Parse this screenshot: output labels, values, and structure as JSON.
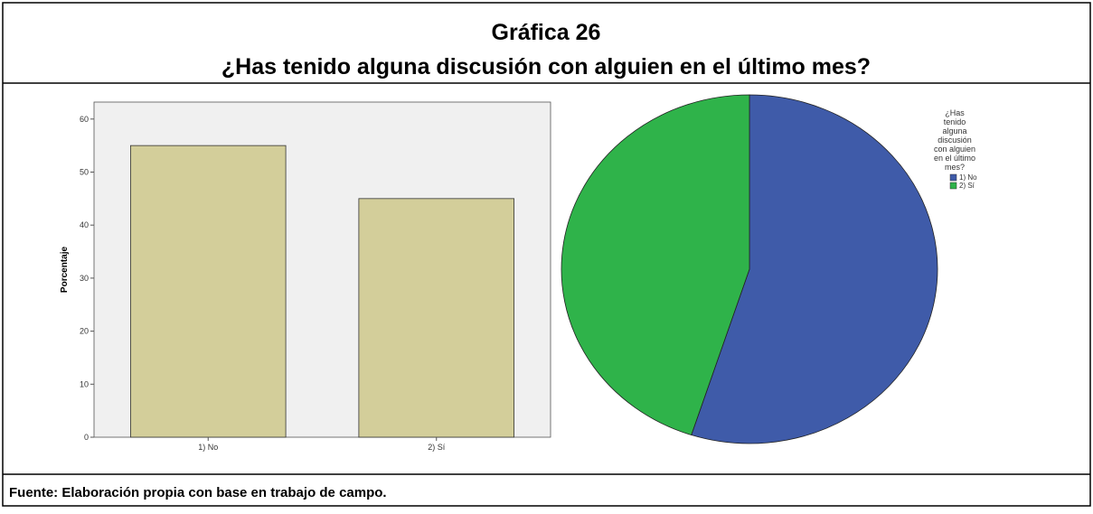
{
  "header": {
    "title": "Gráfica 26",
    "subtitle": "¿Has tenido alguna discusión con alguien en el último mes?"
  },
  "footer": "Fuente: Elaboración propia con base en trabajo de campo.",
  "chart_data": [
    {
      "type": "bar",
      "ylabel": "Porcentaje",
      "categories": [
        "1) No",
        "2) Sí"
      ],
      "values": [
        55,
        45
      ],
      "color": "#d3ce9a",
      "ylim": [
        0,
        63.2
      ],
      "yticks": [
        0,
        10,
        20,
        30,
        40,
        50,
        60
      ]
    },
    {
      "type": "pie",
      "legend_title": "¿Has tenido alguna discusión con alguien en el último mes?",
      "categories": [
        "1) No",
        "2) Sí"
      ],
      "values": [
        55,
        45
      ],
      "colors": [
        "#3f5ba9",
        "#2fb34a"
      ]
    }
  ]
}
